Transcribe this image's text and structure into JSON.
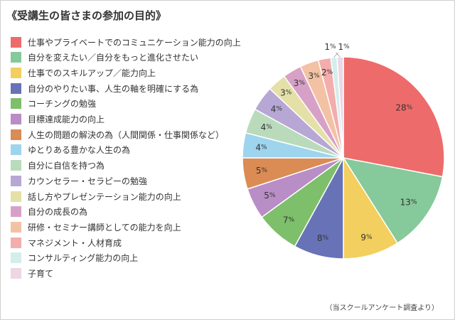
{
  "chart_data": {
    "type": "pie",
    "title": "《受講生の皆さまの参加の目的》",
    "note": "（当スクールアンケート調査より）",
    "value_suffix": "%",
    "categories": [
      "仕事やプライベートでのコミュニケーション能力の向上",
      "自分を変えたい／自分をもっと進化させたい",
      "仕事でのスキルアップ／能力向上",
      "自分のやりたい事、人生の軸を明確にする為",
      "コーチングの勉強",
      "目標達成能力の向上",
      "人生の問題の解決の為（人間関係・仕事関係など）",
      "ゆとりある豊かな人生の為",
      "自分に自信を持つ為",
      "カウンセラー・セラピーの勉強",
      "話し方やプレゼンテーション能力の向上",
      "自分の成長の為",
      "研修・セミナー講師としての能力を向上",
      "マネジメント・人材育成",
      "コンサルティング能力の向上",
      "子育て"
    ],
    "values": [
      28,
      13,
      9,
      8,
      7,
      5,
      5,
      4,
      4,
      4,
      3,
      3,
      3,
      2,
      1,
      1
    ],
    "colors": [
      "#ee6b6b",
      "#86c99a",
      "#f2cf5e",
      "#6773b6",
      "#7dbf6a",
      "#b98dc6",
      "#db8b54",
      "#9ed4ee",
      "#b9dbbc",
      "#b7a7d5",
      "#e4e0a7",
      "#d7a1c7",
      "#f3c2a4",
      "#f3adad",
      "#d4eded",
      "#ecd7e3"
    ],
    "legend_position": "left"
  }
}
